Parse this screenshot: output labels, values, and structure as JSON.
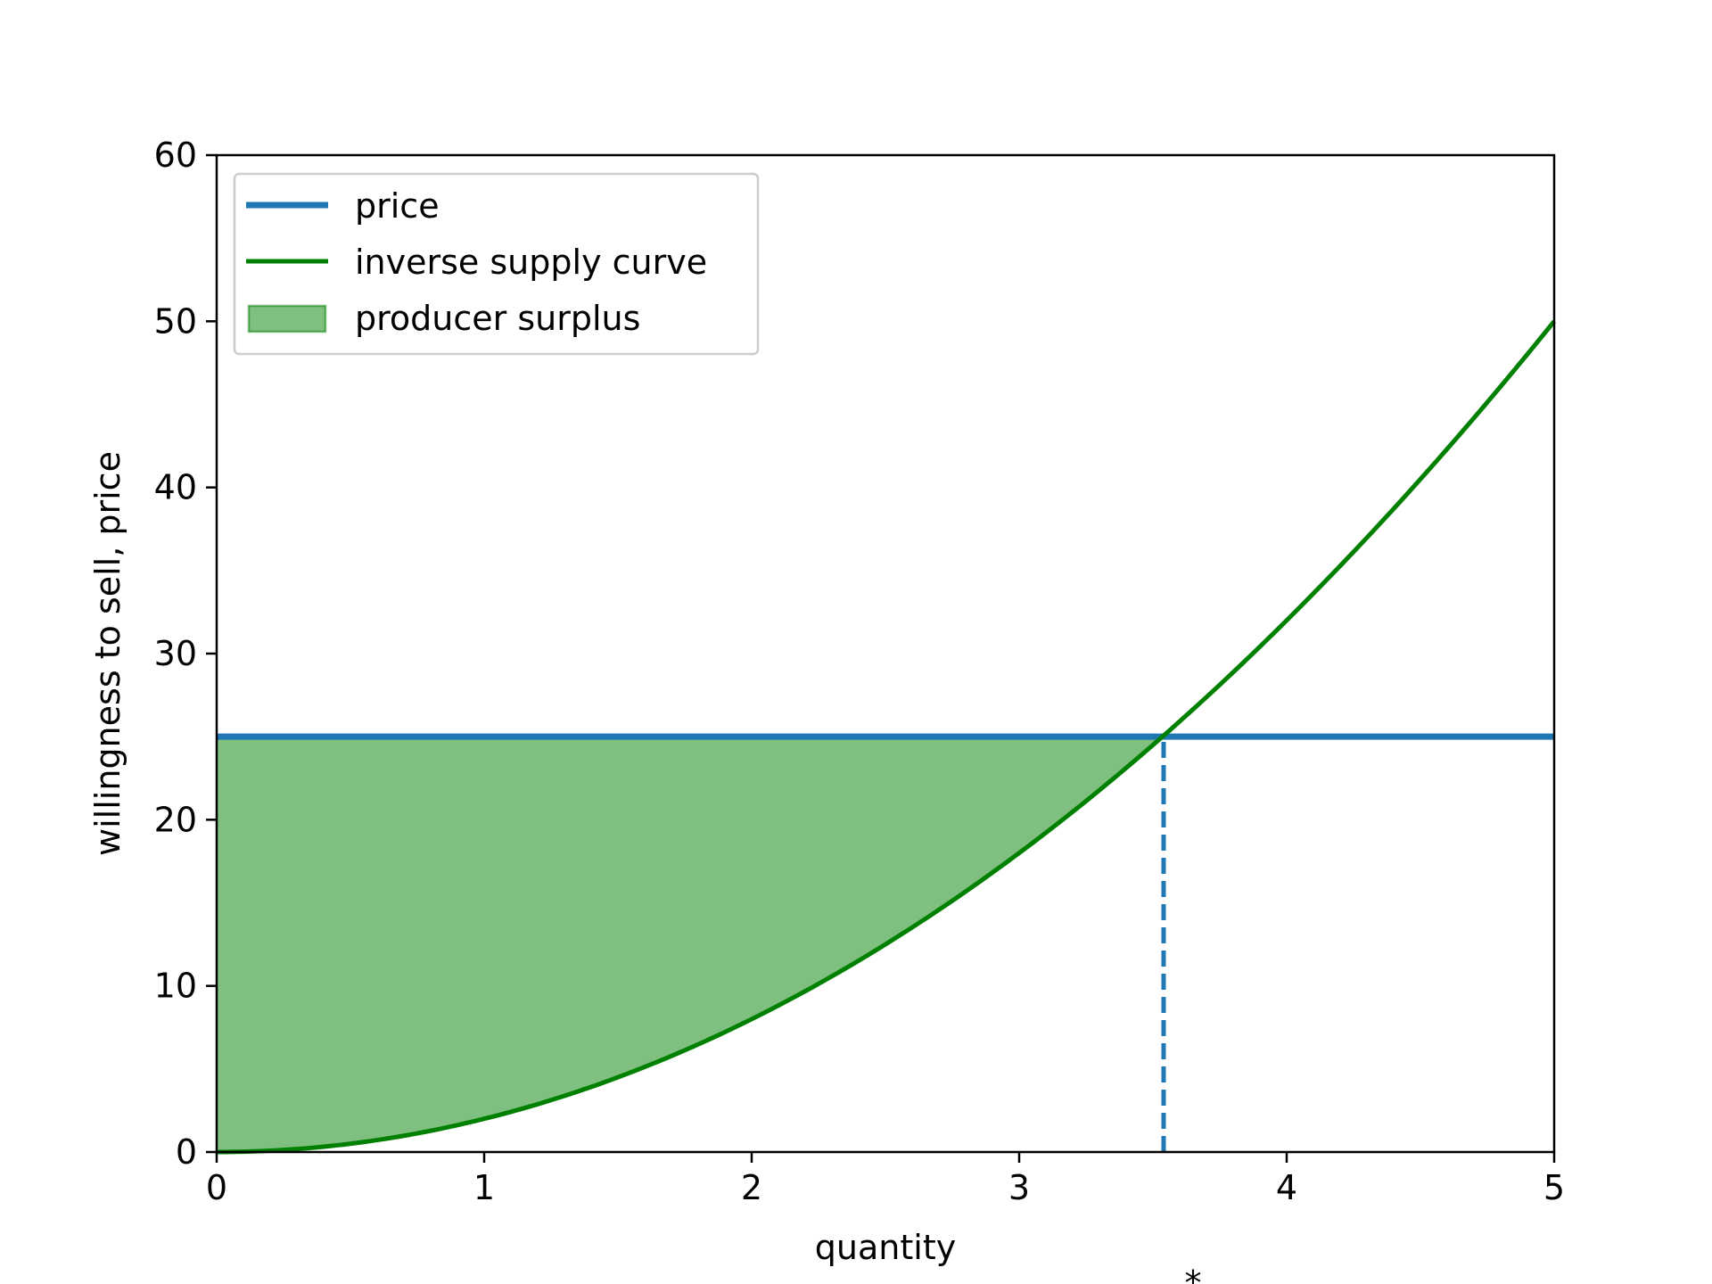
{
  "chart_data": {
    "type": "line",
    "xlabel": "quantity",
    "ylabel": "willingness to sell, price",
    "xlim": [
      0,
      5
    ],
    "ylim": [
      0,
      60
    ],
    "xticks": [
      0,
      1,
      2,
      3,
      4,
      5
    ],
    "yticks": [
      0,
      10,
      20,
      30,
      40,
      50,
      60
    ],
    "xtick_labels": [
      "0",
      "1",
      "2",
      "3",
      "4",
      "5"
    ],
    "ytick_labels": [
      "0",
      "10",
      "20",
      "30",
      "40",
      "50",
      "60"
    ],
    "grid": false,
    "legend_position": "top-left",
    "series": [
      {
        "name": "price",
        "kind": "horizontal-line",
        "color": "#1f77b4",
        "x": [
          0,
          5
        ],
        "y": [
          25,
          25
        ]
      },
      {
        "name": "inverse supply curve",
        "kind": "curve",
        "color": "#008000",
        "x": [
          0,
          0.5,
          1,
          1.5,
          2,
          2.5,
          3,
          3.5,
          4,
          4.5,
          5
        ],
        "y": [
          0,
          0.5,
          2,
          4.5,
          8,
          12.5,
          18,
          24.5,
          32,
          40.5,
          50
        ]
      },
      {
        "name": "producer surplus",
        "kind": "filled-area",
        "color": "#008000",
        "opacity": 0.5,
        "x_range": [
          0,
          3.54
        ],
        "upper": 25,
        "lower": "inverse supply curve"
      }
    ],
    "annotations": [
      {
        "kind": "vertical-dashed-line",
        "color": "#1f77b4",
        "x": 3.54,
        "y_range": [
          0,
          25
        ]
      },
      {
        "kind": "text",
        "text": "*",
        "x": 3.65
      }
    ]
  }
}
